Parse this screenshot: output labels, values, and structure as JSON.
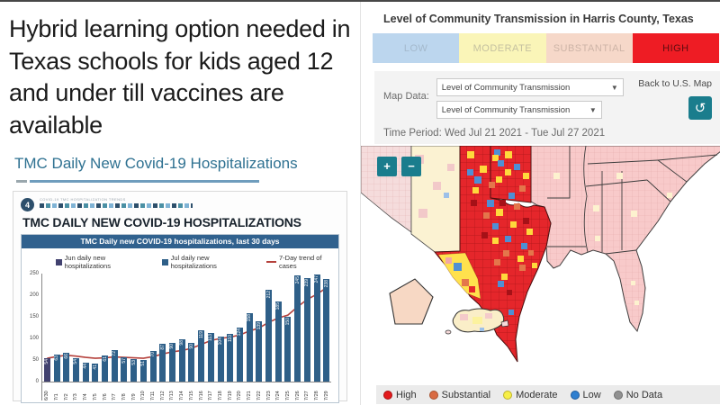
{
  "article": {
    "headline": "Hybrid learning option needed in Texas schools for kids aged 12 and under till vaccines are available",
    "link": "TMC Daily New Covid-19 Hospitalizations"
  },
  "tmc_card": {
    "badge": "4",
    "eyebrow": "COVID-19 TMC HOSPITALIZATION TRENDS",
    "title": "TMC DAILY NEW COVID-19 HOSPITALIZATIONS",
    "chart_header": "TMC Daily new COVID-19 hospitalizations, last 30 days",
    "legend": [
      {
        "label": "Jun daily new hospitalizations",
        "color": "#41416f",
        "type": "square"
      },
      {
        "label": "Jul daily new hospitalizations",
        "color": "#2e5f88",
        "type": "square"
      },
      {
        "label": "7-Day trend of cases",
        "color": "#b5413c",
        "type": "line"
      }
    ]
  },
  "chart_data": {
    "type": "bar",
    "title": "TMC Daily new COVID-19 hospitalizations, last 30 days",
    "categories": [
      "6/30",
      "7/1",
      "7/2",
      "7/3",
      "7/4",
      "7/5",
      "7/6",
      "7/7",
      "7/8",
      "7/9",
      "7/10",
      "7/11",
      "7/12",
      "7/13",
      "7/14",
      "7/15",
      "7/16",
      "7/17",
      "7/18",
      "7/19",
      "7/20",
      "7/21",
      "7/22",
      "7/23",
      "7/24",
      "7/25",
      "7/26",
      "7/27",
      "7/28",
      "7/29"
    ],
    "series": [
      {
        "name": "Daily new hospitalizations",
        "values": [
          54,
          63,
          66,
          54,
          44,
          41,
          61,
          72,
          57,
          53,
          51,
          70,
          87,
          90,
          98,
          90,
          119,
          113,
          104,
          110,
          124,
          158,
          139,
          212,
          185,
          150,
          245,
          239,
          247,
          238
        ]
      },
      {
        "name": "7-Day trend of cases",
        "values": [
          54,
          58,
          61,
          59,
          56,
          54,
          55,
          57,
          56,
          55,
          54,
          58,
          64,
          69,
          72,
          77,
          86,
          95,
          100,
          103,
          108,
          117,
          124,
          137,
          147,
          154,
          173,
          190,
          202,
          217
        ]
      }
    ],
    "ylabel": "",
    "xlabel": "",
    "ylim": [
      0,
      250
    ],
    "yticks": [
      0,
      50,
      100,
      150,
      200,
      250
    ],
    "bar_color_jun": "#41416f",
    "bar_color_jul": "#2e5f88",
    "trend_color": "#b5413c",
    "legend_position": "top",
    "grid": false
  },
  "map_panel": {
    "title": "Level of Community Transmission in Harris County, Texas",
    "tabs": [
      {
        "label": "LOW",
        "bg": "#bcd6ee",
        "text": "#a4b9cc"
      },
      {
        "label": "MODERATE",
        "bg": "#faf5b8",
        "text": "#c5c1a0"
      },
      {
        "label": "SUBSTANTIAL",
        "bg": "#f6d8c9",
        "text": "#cdb4a7"
      },
      {
        "label": "HIGH",
        "bg": "#ee1c24",
        "text": "#5d0d10"
      }
    ],
    "map_data_label": "Map Data:",
    "select_1": "Level of Community Transmission",
    "select_2": "Level of Community Transmission",
    "back_label": "Back to U.S. Map",
    "reset_icon": "↺",
    "time_period": "Time Period: Wed Jul 21 2021 - Tue Jul 27 2021",
    "zoom_in": "+",
    "zoom_out": "−",
    "legend": [
      {
        "label": "High",
        "color": "#e31a1c",
        "ring": "#a80f11"
      },
      {
        "label": "Substantial",
        "color": "#d96b43",
        "ring": "#a8512f"
      },
      {
        "label": "Moderate",
        "color": "#f7ef48",
        "ring": "#bdb32a"
      },
      {
        "label": "Low",
        "color": "#2f7fd0",
        "ring": "#1d5b9e"
      },
      {
        "label": "No Data",
        "color": "#919191",
        "ring": "#6d6d6d"
      }
    ]
  }
}
